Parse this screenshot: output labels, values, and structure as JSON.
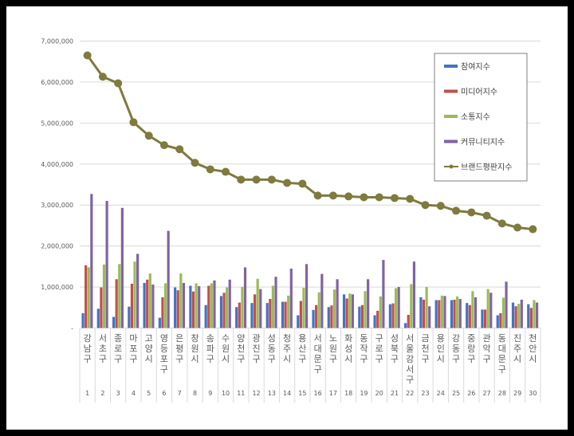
{
  "chart_data": {
    "type": "bar",
    "categories": [
      "강남구",
      "서초구",
      "종로구",
      "마포구",
      "고양시",
      "영등포구",
      "은평구",
      "창원시",
      "송파구",
      "수원시",
      "양천구",
      "광진구",
      "성동구",
      "청주시",
      "용산구",
      "서대문구",
      "노원구",
      "화성시",
      "동작구",
      "구로구",
      "성북구",
      "서울 강서구",
      "금천구",
      "용인시",
      "강동구",
      "중랑구",
      "관악구",
      "동대문구",
      "진주시",
      "천안시"
    ],
    "ranks": [
      "1",
      "2",
      "3",
      "4",
      "5",
      "6",
      "7",
      "8",
      "9",
      "10",
      "11",
      "12",
      "13",
      "14",
      "15",
      "16",
      "17",
      "18",
      "19",
      "20",
      "21",
      "22",
      "23",
      "24",
      "25",
      "26",
      "27",
      "28",
      "29",
      "30"
    ],
    "series": [
      {
        "name": "참여지수",
        "type": "bar",
        "color": "#4472c4",
        "values": [
          360000,
          470000,
          270000,
          520000,
          1100000,
          250000,
          990000,
          1030000,
          560000,
          780000,
          510000,
          610000,
          610000,
          640000,
          310000,
          440000,
          510000,
          820000,
          520000,
          310000,
          580000,
          120000,
          750000,
          680000,
          680000,
          610000,
          450000,
          310000,
          620000,
          580000
        ]
      },
      {
        "name": "미디어지수",
        "type": "bar",
        "color": "#c0504d",
        "values": [
          1530000,
          990000,
          1190000,
          1080000,
          1180000,
          750000,
          920000,
          890000,
          1030000,
          860000,
          620000,
          820000,
          710000,
          640000,
          660000,
          560000,
          550000,
          720000,
          560000,
          420000,
          600000,
          320000,
          690000,
          680000,
          690000,
          560000,
          450000,
          360000,
          530000,
          490000
        ]
      },
      {
        "name": "소통지수",
        "type": "bar",
        "color": "#9bbb59",
        "values": [
          1480000,
          1550000,
          1560000,
          1620000,
          1330000,
          1090000,
          1330000,
          1090000,
          1090000,
          990000,
          1000000,
          1200000,
          1030000,
          790000,
          980000,
          870000,
          940000,
          840000,
          900000,
          770000,
          970000,
          1070000,
          1000000,
          790000,
          770000,
          900000,
          950000,
          740000,
          590000,
          680000
        ]
      },
      {
        "name": "커뮤니티지수",
        "type": "bar",
        "color": "#8064a2",
        "values": [
          3270000,
          3100000,
          2930000,
          1810000,
          1060000,
          2370000,
          1100000,
          1020000,
          1160000,
          1180000,
          1480000,
          950000,
          1250000,
          1450000,
          1560000,
          1320000,
          1190000,
          820000,
          1190000,
          1660000,
          1000000,
          1620000,
          530000,
          780000,
          710000,
          750000,
          860000,
          1130000,
          690000,
          620000
        ]
      },
      {
        "name": "브랜드평판지수",
        "type": "line",
        "color": "#7f7a3e",
        "values": [
          6650000,
          6130000,
          5970000,
          5020000,
          4690000,
          4460000,
          4360000,
          4030000,
          3870000,
          3810000,
          3620000,
          3620000,
          3620000,
          3540000,
          3520000,
          3230000,
          3230000,
          3210000,
          3190000,
          3190000,
          3170000,
          3150000,
          3000000,
          2980000,
          2860000,
          2820000,
          2740000,
          2550000,
          2450000,
          2410000
        ]
      }
    ],
    "ylim": [
      0,
      7000000
    ],
    "yticks": [
      "-",
      "1,000,000",
      "2,000,000",
      "3,000,000",
      "4,000,000",
      "5,000,000",
      "6,000,000",
      "7,000,000"
    ],
    "grid": true,
    "legend": "top-right"
  }
}
